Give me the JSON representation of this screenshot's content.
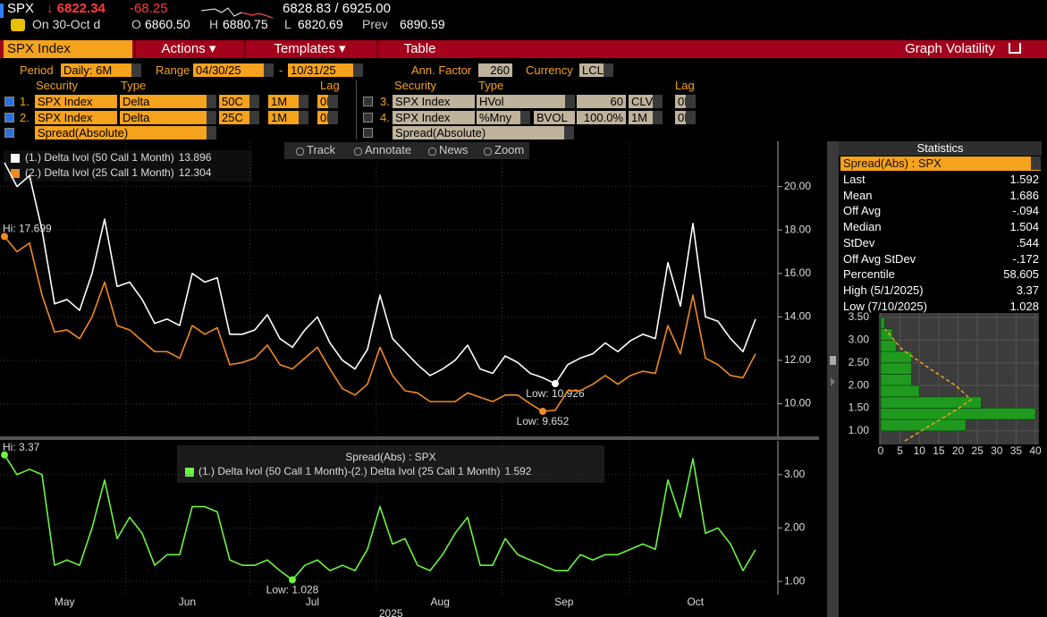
{
  "header": {
    "ticker": "SPX",
    "last": "↓ 6822.34",
    "change": "-68.25",
    "range": "6828.83 / 6925.00",
    "date": "On 30-Oct d",
    "quotes": [
      {
        "label": "O",
        "value": "6860.50"
      },
      {
        "label": "H",
        "value": "6880.75"
      },
      {
        "label": "L",
        "value": "6820.69"
      },
      {
        "label": "Prev",
        "value": "6890.59"
      }
    ]
  },
  "menu": [
    "SPX Index",
    "Actions ▾",
    "Templates ▾",
    "Table",
    "Graph Volatility"
  ],
  "settings": {
    "period_label": "Period",
    "period": "Daily: 6M",
    "range_label": "Range",
    "start": "04/30/25",
    "separator": "-",
    "end": "10/31/25",
    "ann_label": "Ann. Factor",
    "ann": "260",
    "currency_label": "Currency",
    "currency": "LCL"
  },
  "securities": {
    "left": {
      "headers": [
        "Security",
        "Type",
        "Lag"
      ],
      "rows": [
        [
          "1.",
          "SPX Index",
          "Delta",
          "50C",
          "1M",
          "0D"
        ],
        [
          "2.",
          "SPX Index",
          "Delta",
          "25C",
          "1M",
          "0D"
        ],
        [
          "Spread(Absolute)"
        ]
      ]
    },
    "right": {
      "headers": [
        "Security",
        "Type",
        "Lag"
      ],
      "rows": [
        [
          "3.",
          "SPX Index",
          "HVol",
          "60",
          "CLV",
          "0D"
        ],
        [
          "4.",
          "SPX Index",
          "%Mny",
          "BVOL",
          "100.0%",
          "1M",
          "0D"
        ],
        [
          "Spread(Absolute)"
        ]
      ]
    }
  },
  "toolbar": [
    "Track",
    "Annotate",
    "News",
    "Zoom"
  ],
  "chart_data": [
    {
      "type": "line",
      "xlim": [
        0,
        60
      ],
      "ylim": [
        8.5,
        22
      ],
      "grid": true,
      "yticks": [
        {
          "value": 10,
          "label": "10.00"
        },
        {
          "value": 12,
          "label": "12.00"
        },
        {
          "value": 14,
          "label": "14.00"
        },
        {
          "value": 16,
          "label": "16.00"
        },
        {
          "value": 18,
          "label": "18.00"
        },
        {
          "value": 20,
          "label": "20.00"
        }
      ],
      "series": [
        {
          "name": "(1.) Delta Ivol (50 Call 1 Month)",
          "color": "#ffffff",
          "low_label": "Low: 10.926",
          "values": [
            21.1,
            20.0,
            20.5,
            18.0,
            14.6,
            14.8,
            14.3,
            16.0,
            18.5,
            15.4,
            15.6,
            14.8,
            13.7,
            13.9,
            13.6,
            16.0,
            15.6,
            15.8,
            13.2,
            13.2,
            13.4,
            14.1,
            13.0,
            12.6,
            13.4,
            14.0,
            12.8,
            12.0,
            11.6,
            12.5,
            15.0,
            13.0,
            12.4,
            11.8,
            11.3,
            11.6,
            12.0,
            12.7,
            11.6,
            11.4,
            12.2,
            11.9,
            11.4,
            11.2,
            10.926,
            11.8,
            12.1,
            12.3,
            12.8,
            12.4,
            12.9,
            13.2,
            13.0,
            16.5,
            14.5,
            18.3,
            14.0,
            13.8,
            13.0,
            12.4,
            13.896
          ]
        },
        {
          "name": "(2.) Delta Ivol (25 Call 1 Month)",
          "color": "#f08a24",
          "low_label": "Low: 9.652",
          "high_label": "Hi: 17.699",
          "values": [
            17.699,
            17.0,
            17.4,
            15.0,
            13.3,
            13.4,
            13.0,
            14.0,
            15.6,
            13.6,
            13.4,
            12.9,
            12.4,
            12.4,
            12.1,
            13.6,
            13.2,
            13.5,
            11.8,
            11.9,
            12.1,
            12.7,
            11.8,
            11.6,
            12.1,
            12.6,
            11.6,
            10.7,
            10.4,
            10.9,
            12.6,
            11.3,
            10.6,
            10.5,
            10.1,
            10.1,
            10.1,
            10.5,
            10.3,
            10.1,
            10.4,
            10.4,
            10.0,
            9.652,
            9.7,
            10.6,
            10.6,
            10.9,
            11.3,
            10.9,
            11.3,
            11.5,
            11.4,
            13.6,
            12.3,
            15.0,
            12.1,
            11.8,
            11.3,
            11.2,
            12.304
          ]
        }
      ]
    },
    {
      "type": "line",
      "title": "Spread(Abs) : SPX",
      "xlim": [
        0,
        60
      ],
      "ylim": [
        0.75,
        3.6
      ],
      "grid": true,
      "xlabel": "2025",
      "xticks": [
        {
          "value": 4.8,
          "label": "May"
        },
        {
          "value": 14.6,
          "label": "Jun"
        },
        {
          "value": 24.6,
          "label": "Jul"
        },
        {
          "value": 34.8,
          "label": "Aug"
        },
        {
          "value": 44.7,
          "label": "Sep"
        },
        {
          "value": 55.2,
          "label": "Oct"
        }
      ],
      "yticks": [
        {
          "value": 1,
          "label": "1.00"
        },
        {
          "value": 2,
          "label": "2.00"
        },
        {
          "value": 3,
          "label": "3.00"
        }
      ],
      "series": [
        {
          "name": "(1.) Delta Ivol (50 Call 1 Month)-(2.) Delta Ivol (25 Call 1 Month)",
          "color": "#6cf542",
          "low_label": "Low: 1.028",
          "high_label": "Hi: 3.37",
          "values": [
            3.37,
            3.0,
            3.1,
            3.0,
            1.3,
            1.4,
            1.3,
            2.0,
            2.9,
            1.8,
            2.2,
            1.9,
            1.3,
            1.5,
            1.5,
            2.4,
            2.4,
            2.3,
            1.4,
            1.3,
            1.3,
            1.4,
            1.2,
            1.028,
            1.3,
            1.4,
            1.2,
            1.3,
            1.2,
            1.6,
            2.4,
            1.7,
            1.8,
            1.3,
            1.2,
            1.5,
            1.9,
            2.2,
            1.3,
            1.3,
            1.8,
            1.5,
            1.4,
            1.3,
            1.2,
            1.2,
            1.5,
            1.4,
            1.5,
            1.5,
            1.6,
            1.7,
            1.6,
            2.9,
            2.2,
            3.3,
            1.9,
            2.0,
            1.7,
            1.2,
            1.592
          ]
        }
      ]
    },
    {
      "type": "histogram",
      "orientation": "horizontal",
      "color": "#1f9a1f",
      "bins": [
        1.0,
        1.25,
        1.5,
        1.75,
        2.0,
        2.25,
        2.5,
        2.75,
        3.0,
        3.25,
        3.5
      ],
      "counts": [
        22,
        40,
        26,
        10,
        8,
        8,
        8,
        4,
        3,
        1
      ],
      "xlim": [
        0,
        40
      ],
      "xticks": [
        0,
        5,
        10,
        15,
        20,
        25,
        30,
        35,
        40
      ],
      "ylim": [
        0.7,
        3.6
      ],
      "yticks": [
        {
          "value": 1,
          "label": "1.00"
        },
        {
          "value": 1.5,
          "label": "1.50"
        },
        {
          "value": 2,
          "label": "2.00"
        },
        {
          "value": 2.5,
          "label": "2.50"
        },
        {
          "value": 3,
          "label": "3.00"
        },
        {
          "value": 3.5,
          "label": "3.50"
        }
      ]
    }
  ],
  "statistics": {
    "title": "Statistics",
    "selector": "Spread(Abs) : SPX",
    "rows": [
      [
        "Last",
        "1.592"
      ],
      [
        "Mean",
        "1.686"
      ],
      [
        "Off Avg",
        "-.094"
      ],
      [
        "Median",
        "1.504"
      ],
      [
        "StDev",
        ".544"
      ],
      [
        "Off Avg StDev",
        "-.172"
      ],
      [
        "Percentile",
        "58.605"
      ],
      [
        "High (5/1/2025)",
        "3.37"
      ],
      [
        "Low (7/10/2025)",
        "1.028"
      ]
    ]
  }
}
